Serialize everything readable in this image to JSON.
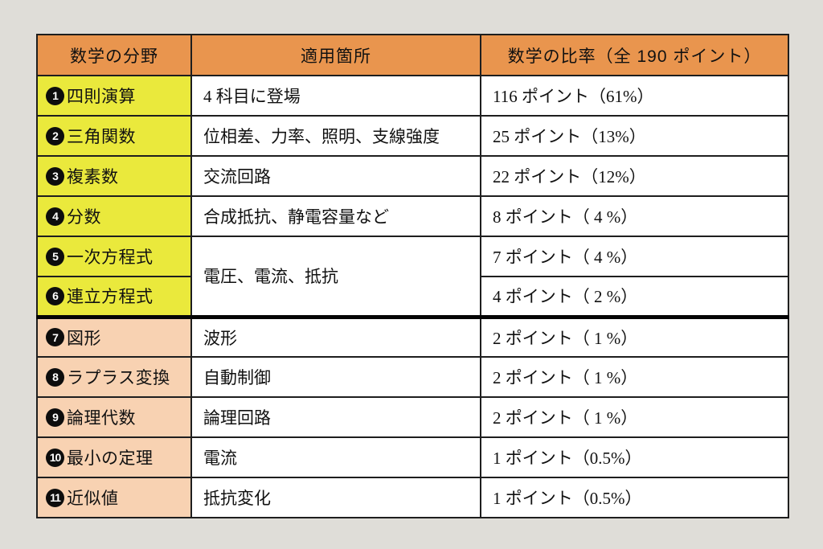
{
  "table": {
    "headers": {
      "field": "数学の分野",
      "usage": "適用箇所",
      "points": "数学の比率（全 190 ポイント）"
    },
    "colors": {
      "header_bg": "#e9954e",
      "group1_bg": "#eae93c",
      "group2_bg": "#f8d2b2",
      "border": "#1e1e1e",
      "thick_divider": "#050505",
      "page_bg": "#dfddd8"
    },
    "rows": [
      {
        "num": "1",
        "field": "四則演算",
        "usage": "4 科目に登場",
        "points": "116 ポイント（61%）"
      },
      {
        "num": "2",
        "field": "三角関数",
        "usage": "位相差、力率、照明、支線強度",
        "points": "25 ポイント（13%）"
      },
      {
        "num": "3",
        "field": "複素数",
        "usage": "交流回路",
        "points": "22 ポイント（12%）"
      },
      {
        "num": "4",
        "field": "分数",
        "usage": "合成抵抗、静電容量など",
        "points": "8 ポイント（ 4 %）"
      },
      {
        "num": "5",
        "field": "一次方程式",
        "usage": "電圧、電流、抵抗",
        "points": "7 ポイント（ 4 %）"
      },
      {
        "num": "6",
        "field": "連立方程式",
        "usage": "",
        "points": "4 ポイント（ 2 %）"
      },
      {
        "num": "7",
        "field": "図形",
        "usage": "波形",
        "points": "2 ポイント（ 1 %）"
      },
      {
        "num": "8",
        "field": "ラプラス変換",
        "usage": "自動制御",
        "points": "2 ポイント（ 1 %）"
      },
      {
        "num": "9",
        "field": "論理代数",
        "usage": "論理回路",
        "points": "2 ポイント（ 1 %）"
      },
      {
        "num": "10",
        "field": "最小の定理",
        "usage": "電流",
        "points": "1 ポイント（0.5%）"
      },
      {
        "num": "11",
        "field": "近似値",
        "usage": "抵抗変化",
        "points": "1 ポイント（0.5%）"
      }
    ]
  }
}
